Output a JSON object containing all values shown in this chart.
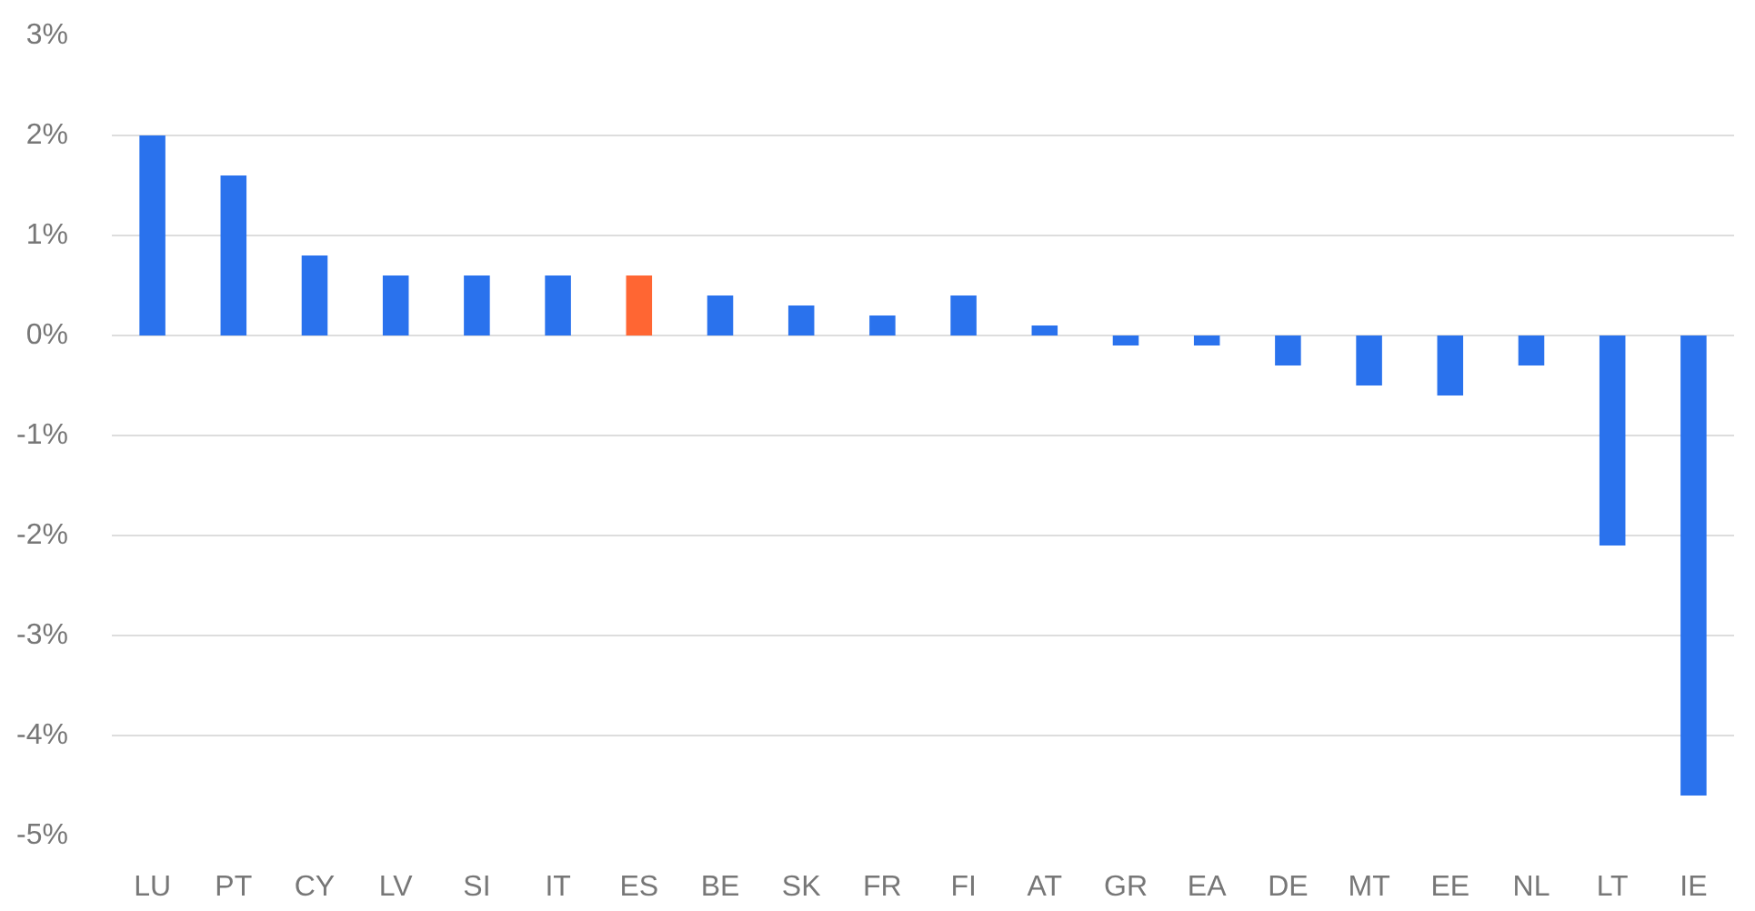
{
  "chart_data": {
    "type": "bar",
    "categories": [
      "LU",
      "PT",
      "CY",
      "LV",
      "SI",
      "IT",
      "ES",
      "BE",
      "SK",
      "FR",
      "FI",
      "AT",
      "GR",
      "EA",
      "DE",
      "MT",
      "EE",
      "NL",
      "LT",
      "IE"
    ],
    "values": [
      2.0,
      1.6,
      0.8,
      0.6,
      0.6,
      0.6,
      0.6,
      0.4,
      0.3,
      0.2,
      0.4,
      0.1,
      -0.1,
      -0.1,
      -0.3,
      -0.5,
      -0.6,
      -0.3,
      -2.1,
      -4.6
    ],
    "colors": [
      "#2a72ed",
      "#2a72ed",
      "#2a72ed",
      "#2a72ed",
      "#2a72ed",
      "#2a72ed",
      "#ff6633",
      "#2a72ed",
      "#2a72ed",
      "#2a72ed",
      "#2a72ed",
      "#2a72ed",
      "#2a72ed",
      "#2a72ed",
      "#2a72ed",
      "#2a72ed",
      "#2a72ed",
      "#2a72ed",
      "#2a72ed",
      "#2a72ed"
    ],
    "ylim": [
      -5,
      3
    ],
    "yticks": [
      {
        "value": -5,
        "label": "-5%"
      },
      {
        "value": -4,
        "label": "-4%"
      },
      {
        "value": -3,
        "label": "-3%"
      },
      {
        "value": -2,
        "label": "-2%"
      },
      {
        "value": -1,
        "label": "-1%"
      },
      {
        "value": 0,
        "label": "0%"
      },
      {
        "value": 1,
        "label": "1%"
      },
      {
        "value": 2,
        "label": "2%"
      },
      {
        "value": 3,
        "label": "3%"
      }
    ],
    "grid": "y"
  }
}
